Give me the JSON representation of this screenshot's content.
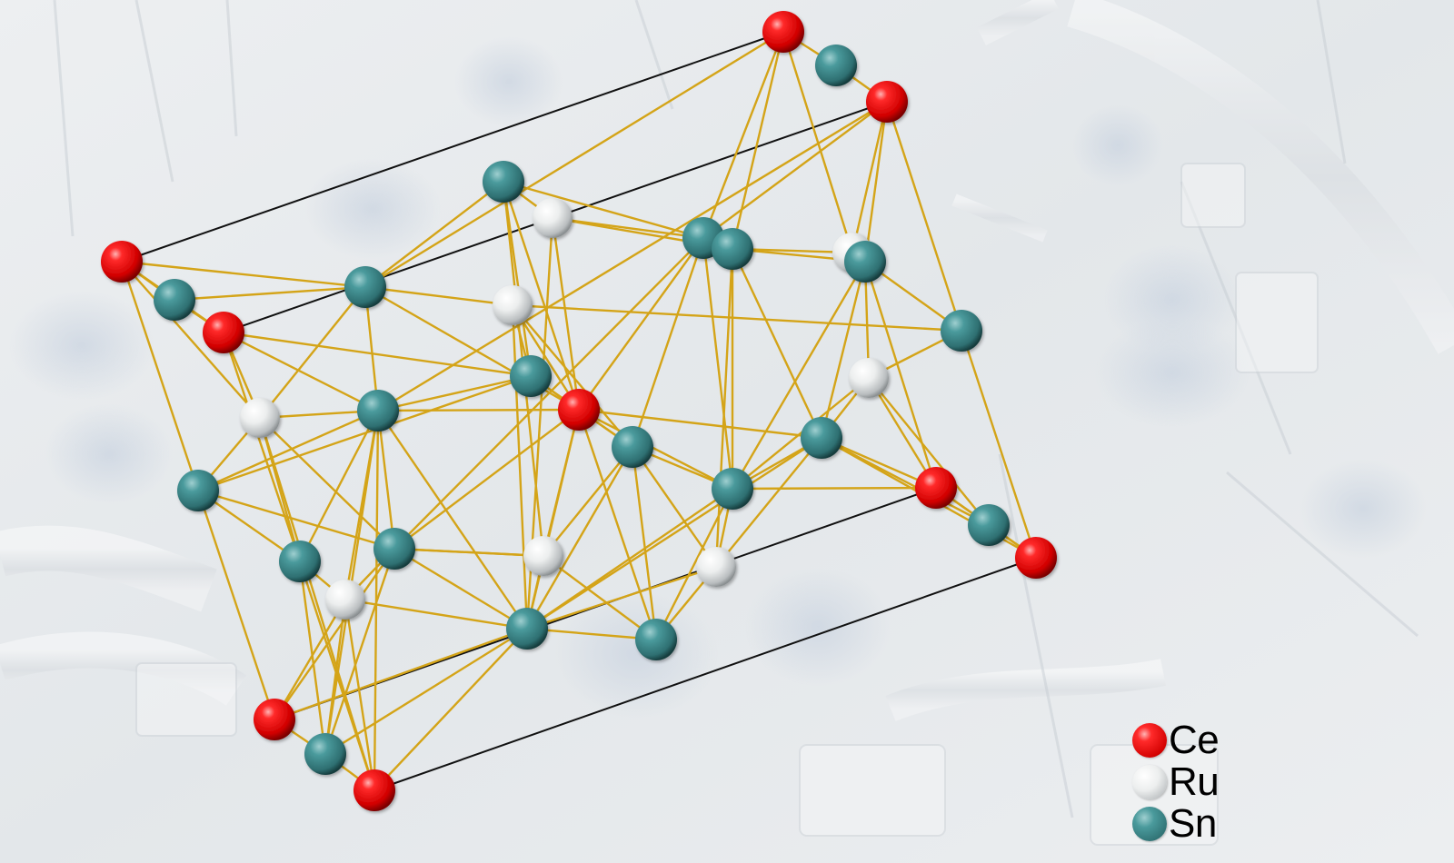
{
  "legend": {
    "items": [
      {
        "label": "Ce",
        "color": "#ee1111",
        "element": "Ce"
      },
      {
        "label": "Ru",
        "color": "#e4e6e6",
        "element": "Ru"
      },
      {
        "label": "Sn",
        "color": "#3f8a8c",
        "element": "Sn"
      }
    ]
  },
  "colors": {
    "bond": "#d4a418",
    "cell_edge": "#111111",
    "background_tint": "#e6e9ec"
  }
}
